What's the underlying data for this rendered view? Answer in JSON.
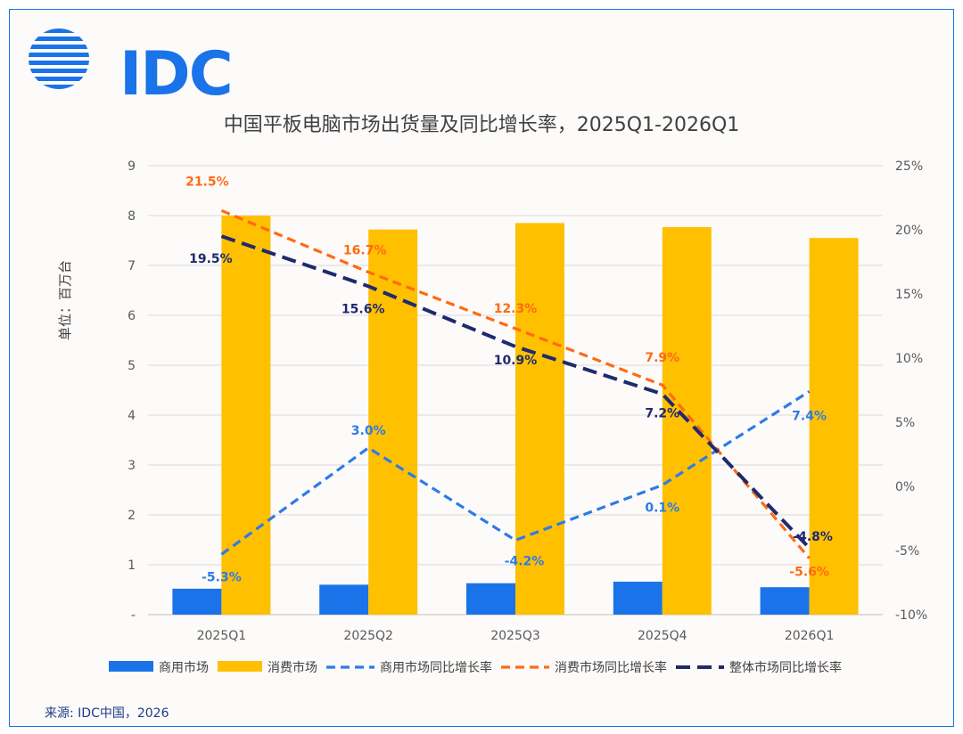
{
  "logo": {
    "text": "IDC",
    "icon": "globe-stripes-icon",
    "color": "#1a73e8"
  },
  "footer": {
    "source": "来源: IDC中国，2026"
  },
  "chart_data": {
    "type": "bar",
    "title": "中国平板电脑市场出货量及同比增长率，2025Q1-2026Q1",
    "ylabel": "单位：百万台",
    "categories": [
      "2025Q1",
      "2025Q2",
      "2025Q3",
      "2025Q4",
      "2026Q1"
    ],
    "left_axis": {
      "min": 0,
      "max": 9,
      "ticks": [
        "-",
        "1",
        "2",
        "3",
        "4",
        "5",
        "6",
        "7",
        "8",
        "9"
      ]
    },
    "right_axis": {
      "min": -10,
      "max": 25,
      "ticks": [
        "-10%",
        "-5%",
        "0%",
        "5%",
        "10%",
        "15%",
        "20%",
        "25%"
      ]
    },
    "grid": true,
    "legend_position": "bottom",
    "series": [
      {
        "name": "商用市场",
        "type": "bar",
        "axis": "left",
        "color": "#1a73e8",
        "values": [
          0.52,
          0.6,
          0.63,
          0.66,
          0.55
        ]
      },
      {
        "name": "消费市场",
        "type": "bar",
        "axis": "left",
        "color": "#ffc000",
        "values": [
          8.0,
          7.72,
          7.85,
          7.77,
          7.55
        ]
      },
      {
        "name": "商用市场同比增长率",
        "type": "line",
        "axis": "right",
        "color": "#2e7be6",
        "label_color": "#2e7be6",
        "values": [
          -5.3,
          3.0,
          -4.2,
          0.1,
          7.4
        ],
        "labels": [
          "-5.3%",
          "3.0%",
          "-4.2%",
          "0.1%",
          "7.4%"
        ]
      },
      {
        "name": "消费市场同比增长率",
        "type": "line",
        "axis": "right",
        "color": "#ff6a13",
        "label_color": "#ff6a13",
        "values": [
          21.5,
          16.7,
          12.3,
          7.9,
          -5.6
        ],
        "labels": [
          "21.5%",
          "16.7%",
          "12.3%",
          "7.9%",
          "-5.6%"
        ]
      },
      {
        "name": "整体市场同比增长率",
        "type": "line",
        "axis": "right",
        "color": "#1f2a6e",
        "label_color": "#1f2a6e",
        "values": [
          19.5,
          15.6,
          10.9,
          7.2,
          -4.8
        ],
        "labels": [
          "19.5%",
          "15.6%",
          "10.9%",
          "7.2%",
          "-4.8%"
        ]
      }
    ]
  }
}
